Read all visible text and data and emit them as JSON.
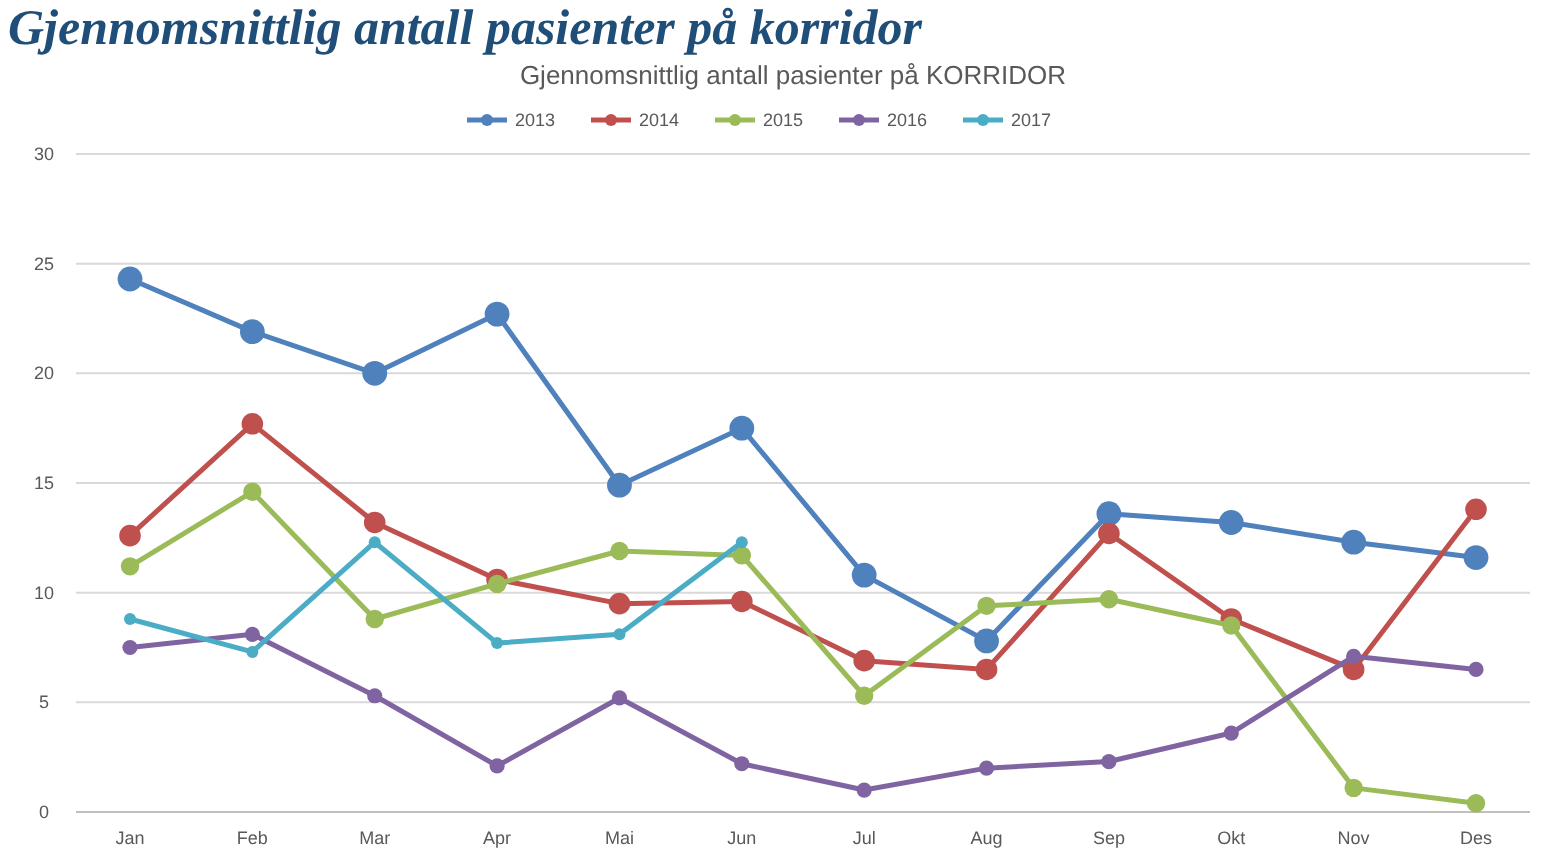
{
  "chart_data": {
    "type": "line",
    "title": "Gjennomsnittlig antall pasienter på korridor",
    "subtitle": "Gjennomsnittlig antall pasienter på KORRIDOR",
    "categories": [
      "Jan",
      "Feb",
      "Mar",
      "Apr",
      "Mai",
      "Jun",
      "Jul",
      "Aug",
      "Sep",
      "Okt",
      "Nov",
      "Des"
    ],
    "series": [
      {
        "name": "2013",
        "color": "#4f81bd",
        "values": [
          24.3,
          21.9,
          20.0,
          22.7,
          14.9,
          17.5,
          10.8,
          7.8,
          13.6,
          13.2,
          12.3,
          11.6
        ]
      },
      {
        "name": "2014",
        "color": "#c0504d",
        "values": [
          12.6,
          17.7,
          13.2,
          10.6,
          9.5,
          9.6,
          6.9,
          6.5,
          12.7,
          8.8,
          6.5,
          13.8
        ]
      },
      {
        "name": "2015",
        "color": "#9bbb59",
        "values": [
          11.2,
          14.6,
          8.8,
          10.4,
          11.9,
          11.7,
          5.3,
          9.4,
          9.7,
          8.5,
          1.1,
          0.4
        ]
      },
      {
        "name": "2016",
        "color": "#8064a2",
        "values": [
          7.5,
          8.1,
          5.3,
          2.1,
          5.2,
          2.2,
          1.0,
          2.0,
          2.3,
          3.6,
          7.1,
          6.5
        ]
      },
      {
        "name": "2017",
        "color": "#4bacc6",
        "values": [
          8.8,
          7.3,
          12.3,
          7.7,
          8.1,
          12.3,
          null,
          null,
          null,
          null,
          null,
          null
        ]
      }
    ],
    "ylim": [
      0,
      30
    ],
    "yticks": [
      0,
      5,
      10,
      15,
      20,
      25,
      30
    ],
    "grid": "y",
    "legend": "top",
    "marker": "circle"
  }
}
